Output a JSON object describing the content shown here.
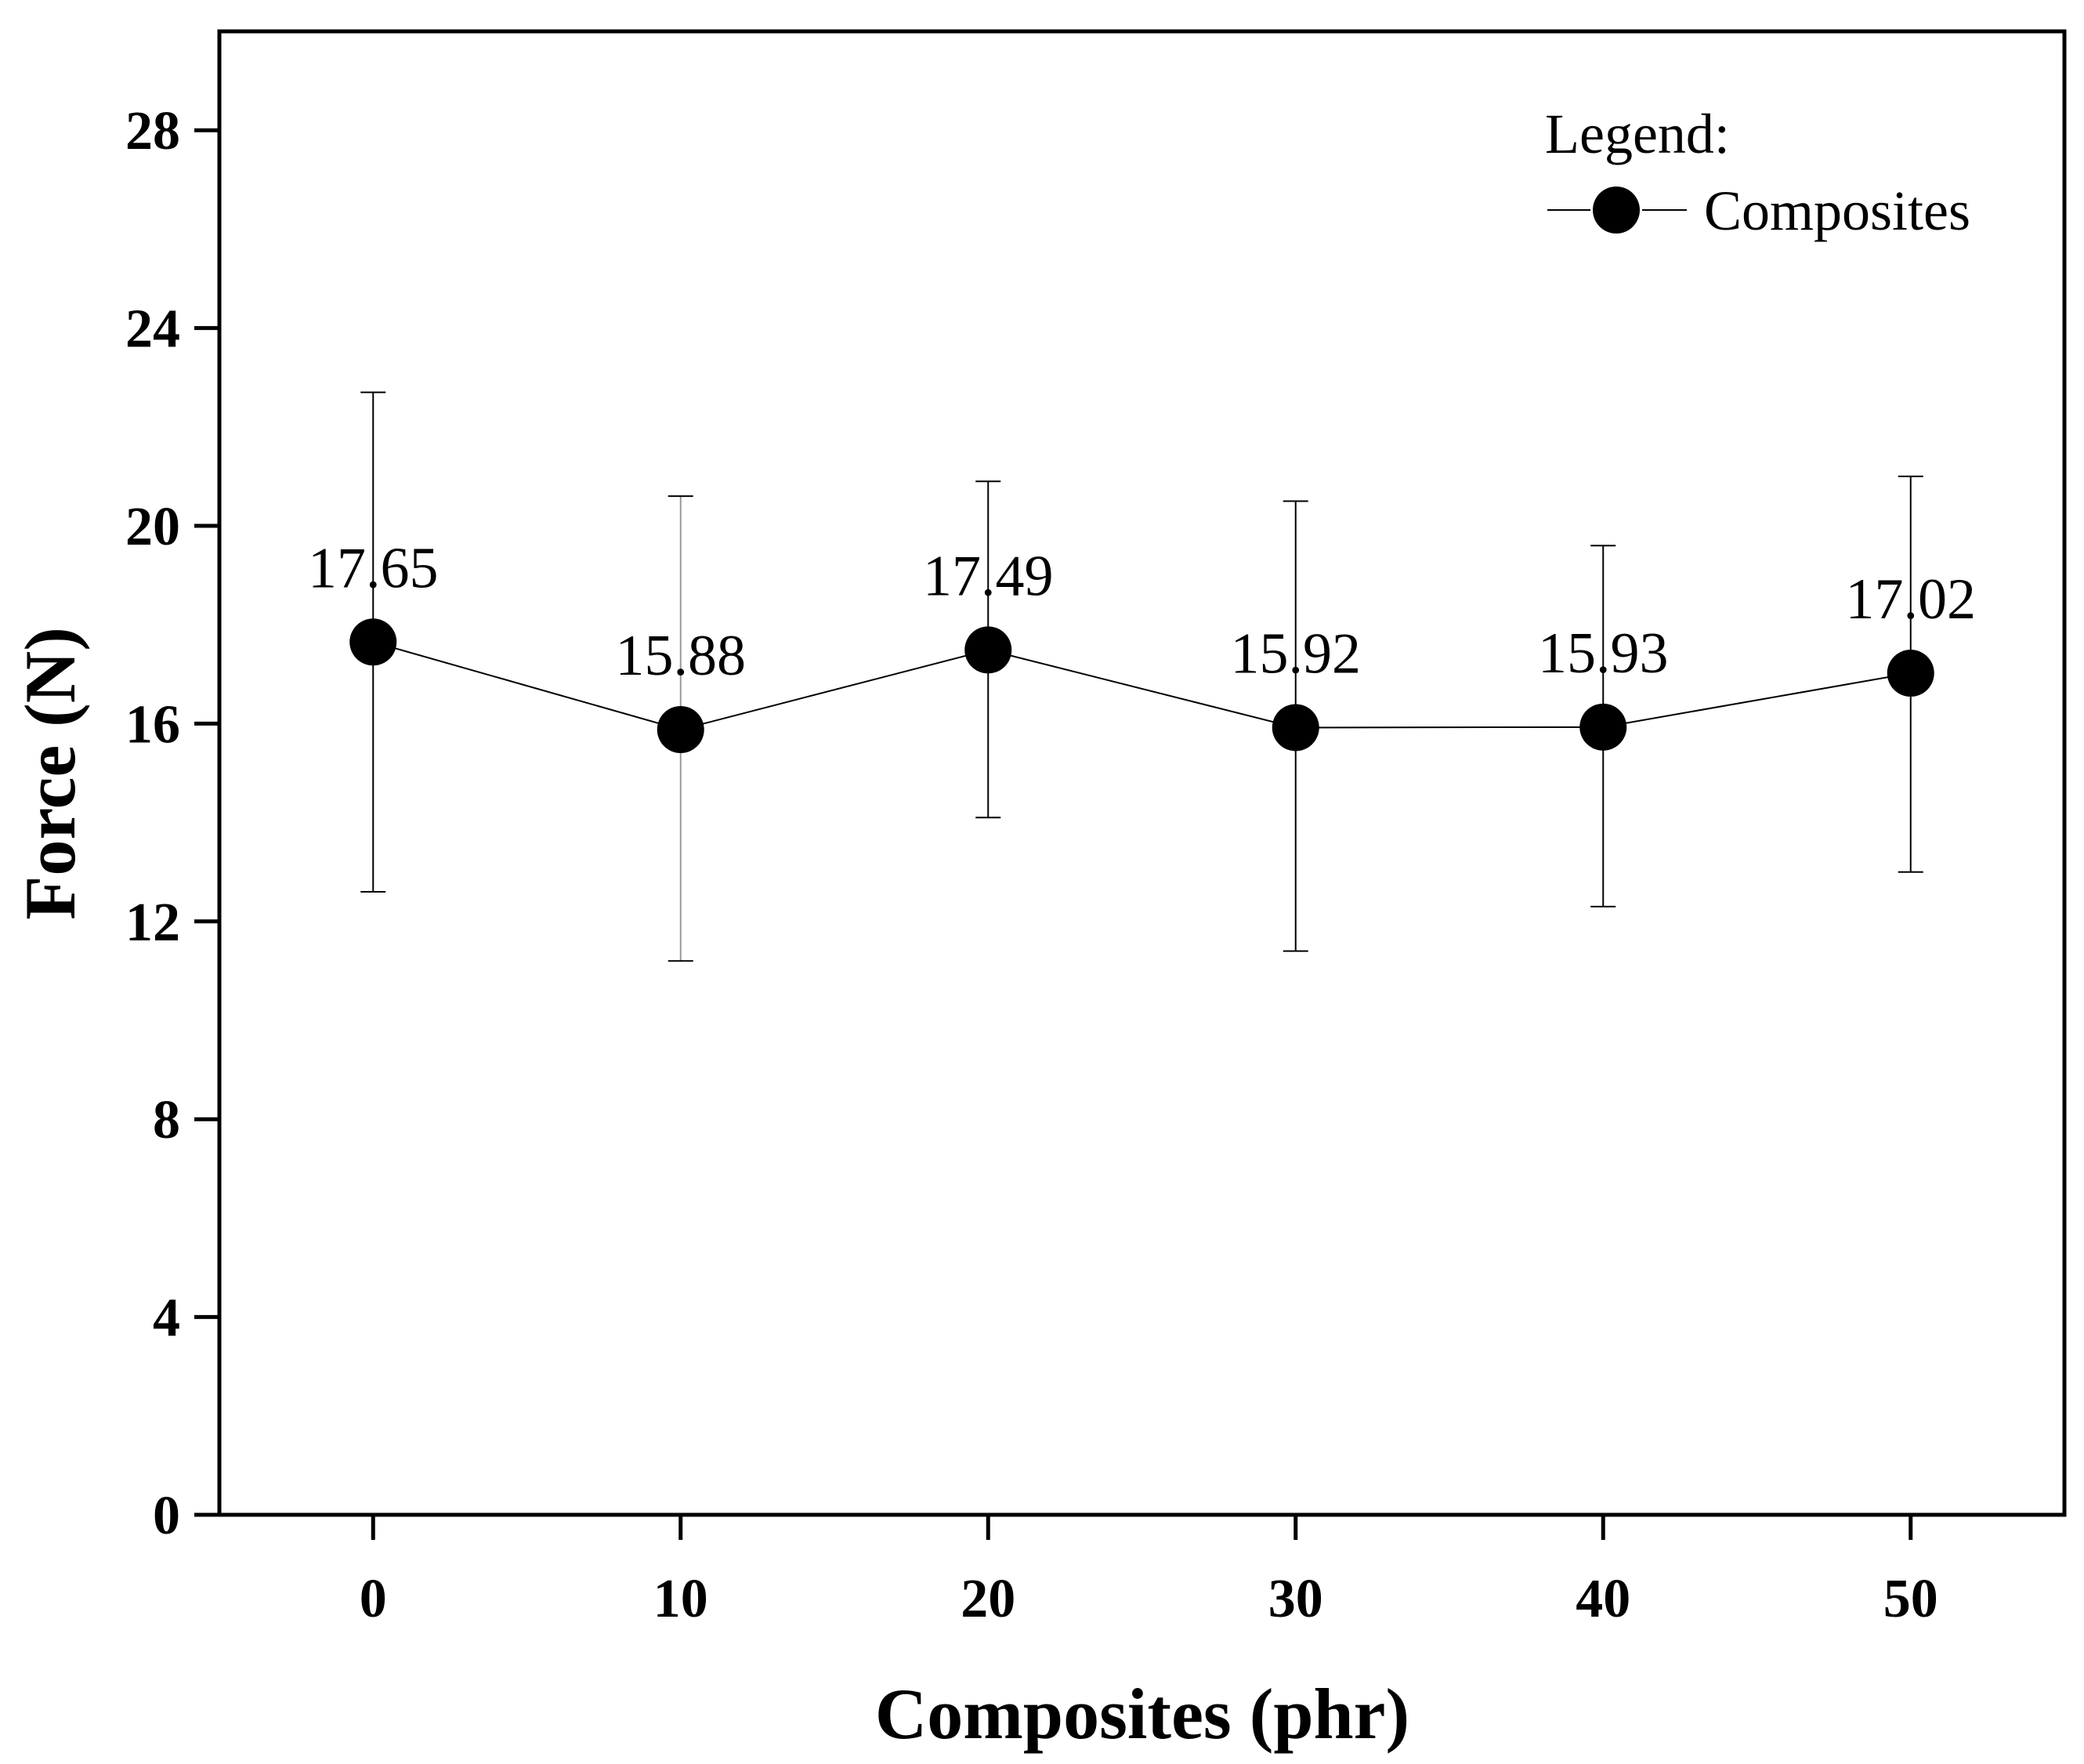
{
  "chart_data": {
    "type": "line",
    "title": "",
    "xlabel": "Composites (phr)",
    "ylabel": "Force (N)",
    "x": [
      0,
      10,
      20,
      30,
      40,
      50
    ],
    "xlim": [
      -5,
      55
    ],
    "ylim": [
      0,
      30
    ],
    "yticks": [
      0,
      4,
      8,
      12,
      16,
      20,
      24,
      28
    ],
    "xticks": [
      0,
      10,
      20,
      30,
      40,
      50
    ],
    "grid": false,
    "legend": {
      "title": "Legend:",
      "placement": "top-right"
    },
    "series": [
      {
        "name": "Composites",
        "color": "#000000",
        "marker": "circle",
        "values": [
          17.65,
          15.88,
          17.49,
          15.92,
          15.93,
          17.02
        ],
        "error_low": [
          12.6,
          11.2,
          14.1,
          11.4,
          12.3,
          13.0
        ],
        "error_high": [
          22.7,
          20.6,
          20.9,
          20.5,
          19.6,
          21.0
        ],
        "labels": [
          "17.65",
          "15.88",
          "17.49",
          "15.92",
          "15.93",
          "17.02"
        ]
      }
    ]
  }
}
